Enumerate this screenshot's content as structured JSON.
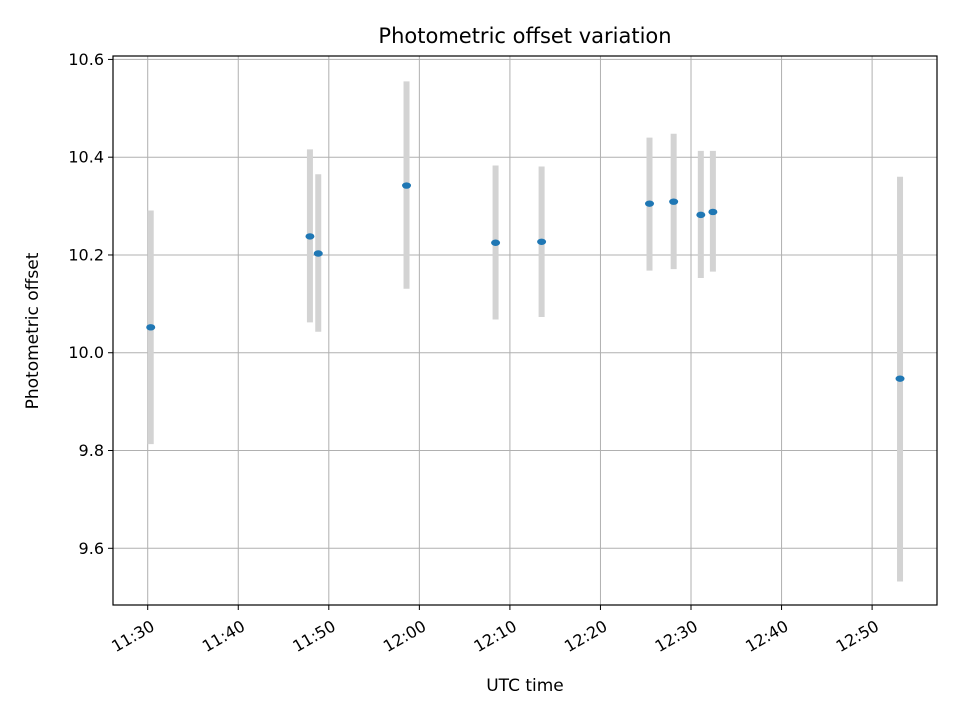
{
  "chart_data": {
    "type": "scatter",
    "title": "Photometric offset variation",
    "xlabel": "UTC time",
    "ylabel": "Photometric offset",
    "x_tick_labels": [
      "11:30",
      "11:40",
      "11:50",
      "12:00",
      "12:10",
      "12:20",
      "12:30",
      "12:40",
      "12:50"
    ],
    "y_tick_labels": [
      "9.6",
      "9.8",
      "10.0",
      "10.2",
      "10.4",
      "10.6"
    ],
    "xlim": [
      "11:26:10",
      "12:57:10"
    ],
    "ylim": [
      9.484,
      10.607
    ],
    "grid": true,
    "marker_color": "#1f77b4",
    "errorbar_color": "#d3d3d3",
    "points": [
      {
        "t": "11:30:20",
        "y": 10.052,
        "ylow": 9.813,
        "yhigh": 10.291
      },
      {
        "t": "11:47:55",
        "y": 10.238,
        "ylow": 10.062,
        "yhigh": 10.416
      },
      {
        "t": "11:48:50",
        "y": 10.203,
        "ylow": 10.043,
        "yhigh": 10.365
      },
      {
        "t": "11:58:35",
        "y": 10.342,
        "ylow": 10.131,
        "yhigh": 10.555
      },
      {
        "t": "12:08:25",
        "y": 10.225,
        "ylow": 10.068,
        "yhigh": 10.383
      },
      {
        "t": "12:13:30",
        "y": 10.227,
        "ylow": 10.073,
        "yhigh": 10.381
      },
      {
        "t": "12:25:25",
        "y": 10.305,
        "ylow": 10.168,
        "yhigh": 10.44
      },
      {
        "t": "12:28:05",
        "y": 10.309,
        "ylow": 10.171,
        "yhigh": 10.448
      },
      {
        "t": "12:31:05",
        "y": 10.282,
        "ylow": 10.153,
        "yhigh": 10.413
      },
      {
        "t": "12:32:25",
        "y": 10.288,
        "ylow": 10.166,
        "yhigh": 10.413
      },
      {
        "t": "12:53:05",
        "y": 9.947,
        "ylow": 9.532,
        "yhigh": 10.36
      }
    ]
  }
}
